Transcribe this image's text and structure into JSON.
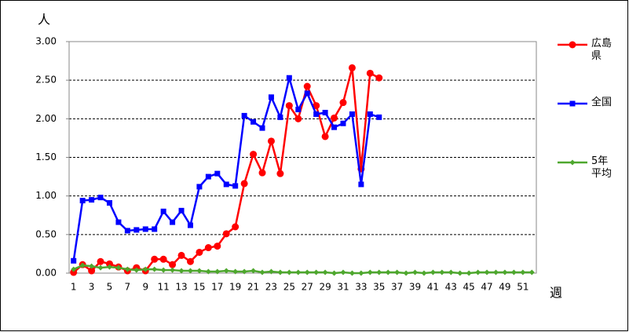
{
  "chart_data": {
    "type": "line",
    "y_label": "人",
    "x_label": "週",
    "categories": [
      "1",
      null,
      "3",
      null,
      "5",
      null,
      "7",
      null,
      "9",
      null,
      "11",
      null,
      "13",
      null,
      "15",
      null,
      "17",
      null,
      "19",
      null,
      "21",
      null,
      "23",
      null,
      "25",
      null,
      "27",
      null,
      "29",
      null,
      "31",
      null,
      "33",
      null,
      "35",
      null,
      "37",
      null,
      "39",
      null,
      "41",
      null,
      "43",
      null,
      "45",
      null,
      "47",
      null,
      "49",
      null,
      "51",
      null
    ],
    "ylim": [
      0,
      3
    ],
    "yticks": [
      {
        "value": 0,
        "label": "0.00"
      },
      {
        "value": 0.5,
        "label": "0.50"
      },
      {
        "value": 1,
        "label": "1.00"
      },
      {
        "value": 1.5,
        "label": "1.50"
      },
      {
        "value": 2,
        "label": "2.00"
      },
      {
        "value": 2.5,
        "label": "2.50"
      },
      {
        "value": 3,
        "label": "3.00"
      }
    ],
    "grid": true,
    "legend": "right",
    "series": [
      {
        "name": "広島県",
        "color": "#ff0000",
        "marker": "circle",
        "values": [
          0.01,
          0.11,
          0.03,
          0.15,
          0.12,
          0.08,
          0.03,
          0.07,
          0.03,
          0.18,
          0.18,
          0.11,
          0.23,
          0.15,
          0.27,
          0.33,
          0.35,
          0.51,
          0.6,
          1.16,
          1.54,
          1.3,
          1.71,
          1.29,
          2.17,
          2.0,
          2.42,
          2.17,
          1.77,
          2.01,
          2.21,
          2.66,
          1.35,
          2.59,
          2.53,
          null,
          null,
          null,
          null,
          null,
          null,
          null,
          null,
          null,
          null,
          null,
          null,
          null,
          null,
          null,
          null,
          null
        ]
      },
      {
        "name": "全国",
        "color": "#0000ff",
        "marker": "square",
        "values": [
          0.16,
          0.94,
          0.95,
          0.98,
          0.91,
          0.66,
          0.55,
          0.56,
          0.57,
          0.57,
          0.8,
          0.66,
          0.81,
          0.62,
          1.12,
          1.25,
          1.29,
          1.15,
          1.13,
          2.04,
          1.96,
          1.88,
          2.28,
          2.02,
          2.53,
          2.12,
          2.33,
          2.06,
          2.08,
          1.89,
          1.94,
          2.06,
          1.15,
          2.06,
          2.02,
          null,
          null,
          null,
          null,
          null,
          null,
          null,
          null,
          null,
          null,
          null,
          null,
          null,
          null,
          null,
          null,
          null
        ]
      },
      {
        "name": "5年平均",
        "color": "#4ea72e",
        "marker": "diamond",
        "values": [
          0.05,
          0.1,
          0.09,
          0.07,
          0.08,
          0.07,
          0.05,
          0.04,
          0.05,
          0.05,
          0.04,
          0.04,
          0.03,
          0.03,
          0.03,
          0.02,
          0.02,
          0.03,
          0.02,
          0.02,
          0.03,
          0.01,
          0.02,
          0.01,
          0.01,
          0.01,
          0.01,
          0.01,
          0.01,
          0.0,
          0.01,
          0.0,
          0.0,
          0.01,
          0.01,
          0.01,
          0.01,
          0.0,
          0.01,
          0.0,
          0.01,
          0.01,
          0.01,
          0.0,
          0.0,
          0.01,
          0.01,
          0.01,
          0.01,
          0.01,
          0.01,
          0.01
        ]
      }
    ]
  }
}
